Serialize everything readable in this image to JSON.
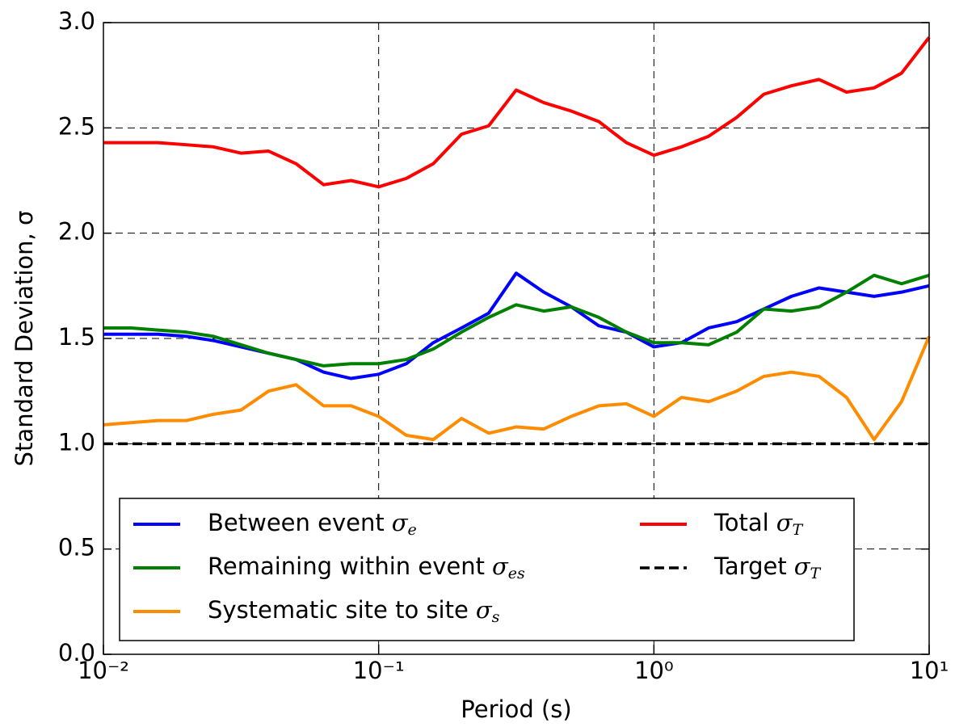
{
  "chart_data": {
    "type": "line",
    "xlabel": "Period (s)",
    "ylabel": "Standard Deviation, σ",
    "xscale": "log",
    "grid": true,
    "legend": "lower center",
    "x": [
      0.01,
      0.0126,
      0.0158,
      0.02,
      0.0251,
      0.0316,
      0.0398,
      0.0501,
      0.0631,
      0.0794,
      0.1,
      0.126,
      0.158,
      0.2,
      0.251,
      0.316,
      0.398,
      0.501,
      0.631,
      0.794,
      1,
      1.26,
      1.58,
      2,
      2.51,
      3.16,
      3.98,
      5.01,
      6.31,
      7.94,
      10
    ],
    "series": [
      {
        "name": "Between event",
        "symbol": "σ",
        "subscript": "e",
        "color": "#0000ff",
        "style": "solid",
        "values": [
          1.52,
          1.52,
          1.52,
          1.51,
          1.49,
          1.46,
          1.43,
          1.4,
          1.34,
          1.31,
          1.33,
          1.38,
          1.48,
          1.55,
          1.62,
          1.81,
          1.72,
          1.65,
          1.56,
          1.53,
          1.46,
          1.48,
          1.55,
          1.58,
          1.64,
          1.7,
          1.74,
          1.72,
          1.7,
          1.72,
          1.75
        ]
      },
      {
        "name": "Remaining within event",
        "symbol": "σ",
        "subscript": "es",
        "color": "#008000",
        "style": "solid",
        "values": [
          1.55,
          1.55,
          1.54,
          1.53,
          1.51,
          1.47,
          1.43,
          1.4,
          1.37,
          1.38,
          1.38,
          1.4,
          1.45,
          1.53,
          1.6,
          1.66,
          1.63,
          1.65,
          1.6,
          1.53,
          1.48,
          1.48,
          1.47,
          1.53,
          1.64,
          1.63,
          1.65,
          1.72,
          1.8,
          1.76,
          1.8
        ]
      },
      {
        "name": "Systematic site to site",
        "symbol": "σ",
        "subscript": "s",
        "color": "#ff8c00",
        "style": "solid",
        "values": [
          1.09,
          1.1,
          1.11,
          1.11,
          1.14,
          1.16,
          1.25,
          1.28,
          1.18,
          1.18,
          1.13,
          1.04,
          1.02,
          1.12,
          1.05,
          1.08,
          1.07,
          1.13,
          1.18,
          1.19,
          1.13,
          1.22,
          1.2,
          1.25,
          1.32,
          1.34,
          1.32,
          1.22,
          1.02,
          1.2,
          1.51
        ]
      },
      {
        "name": "Total",
        "symbol": "σ",
        "subscript": "T",
        "color": "#ff0000",
        "style": "solid",
        "values": [
          2.43,
          2.43,
          2.43,
          2.42,
          2.41,
          2.38,
          2.39,
          2.33,
          2.23,
          2.25,
          2.22,
          2.26,
          2.33,
          2.47,
          2.51,
          2.68,
          2.62,
          2.58,
          2.53,
          2.43,
          2.37,
          2.41,
          2.46,
          2.55,
          2.66,
          2.7,
          2.73,
          2.67,
          2.69,
          2.76,
          2.93
        ]
      },
      {
        "name": "Target",
        "symbol": "σ",
        "subscript": "T",
        "color": "#000000",
        "style": "dashed",
        "values": [
          1,
          1,
          1,
          1,
          1,
          1,
          1,
          1,
          1,
          1,
          1,
          1,
          1,
          1,
          1,
          1,
          1,
          1,
          1,
          1,
          1,
          1,
          1,
          1,
          1,
          1,
          1,
          1,
          1,
          1,
          1
        ]
      }
    ],
    "xlim": [
      0.01,
      10
    ],
    "xticks": [
      {
        "value": 0.01,
        "label": "10⁻²"
      },
      {
        "value": 0.1,
        "label": "10⁻¹"
      },
      {
        "value": 1,
        "label": "10⁰"
      },
      {
        "value": 10,
        "label": "10¹"
      }
    ],
    "ylim": [
      0,
      3
    ],
    "yticks": [
      {
        "value": 0,
        "label": "0.0"
      },
      0.5,
      {
        "value": 1,
        "label": "1.0"
      },
      1.5,
      {
        "value": 2,
        "label": "2.0"
      },
      2.5,
      {
        "value": 3,
        "label": "3.0"
      }
    ]
  }
}
